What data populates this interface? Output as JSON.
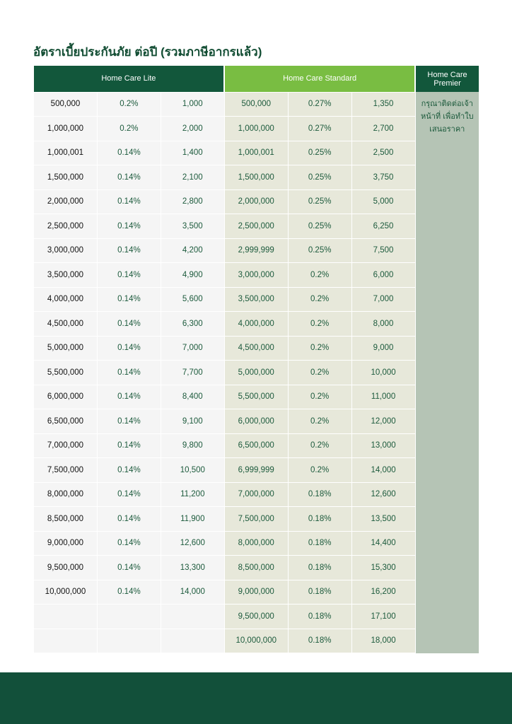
{
  "title": "อัตราเบี้ยประกันภัย ต่อปี (รวมภาษีอากรแล้ว)",
  "headers": {
    "lite": "Home Care Lite",
    "standard": "Home Care Standard",
    "premier": "Home Care Premier"
  },
  "premier_note": "กรุณาติดต่อเจ้าหน้าที่ เพื่อทำใบเสนอราคา",
  "lite_rows": [
    [
      "500,000",
      "0.2%",
      "1,000"
    ],
    [
      "1,000,000",
      "0.2%",
      "2,000"
    ],
    [
      "1,000,001",
      "0.14%",
      "1,400"
    ],
    [
      "1,500,000",
      "0.14%",
      "2,100"
    ],
    [
      "2,000,000",
      "0.14%",
      "2,800"
    ],
    [
      "2,500,000",
      "0.14%",
      "3,500"
    ],
    [
      "3,000,000",
      "0.14%",
      "4,200"
    ],
    [
      "3,500,000",
      "0.14%",
      "4,900"
    ],
    [
      "4,000,000",
      "0.14%",
      "5,600"
    ],
    [
      "4,500,000",
      "0.14%",
      "6,300"
    ],
    [
      "5,000,000",
      "0.14%",
      "7,000"
    ],
    [
      "5,500,000",
      "0.14%",
      "7,700"
    ],
    [
      "6,000,000",
      "0.14%",
      "8,400"
    ],
    [
      "6,500,000",
      "0.14%",
      "9,100"
    ],
    [
      "7,000,000",
      "0.14%",
      "9,800"
    ],
    [
      "7,500,000",
      "0.14%",
      "10,500"
    ],
    [
      "8,000,000",
      "0.14%",
      "11,200"
    ],
    [
      "8,500,000",
      "0.14%",
      "11,900"
    ],
    [
      "9,000,000",
      "0.14%",
      "12,600"
    ],
    [
      "9,500,000",
      "0.14%",
      "13,300"
    ],
    [
      "10,000,000",
      "0.14%",
      "14,000"
    ],
    [
      "",
      "",
      ""
    ],
    [
      "",
      "",
      ""
    ]
  ],
  "standard_rows": [
    [
      "500,000",
      "0.27%",
      "1,350"
    ],
    [
      "1,000,000",
      "0.27%",
      "2,700"
    ],
    [
      "1,000,001",
      "0.25%",
      "2,500"
    ],
    [
      "1,500,000",
      "0.25%",
      "3,750"
    ],
    [
      "2,000,000",
      "0.25%",
      "5,000"
    ],
    [
      "2,500,000",
      "0.25%",
      "6,250"
    ],
    [
      "2,999,999",
      "0.25%",
      "7,500"
    ],
    [
      "3,000,000",
      "0.2%",
      "6,000"
    ],
    [
      "3,500,000",
      "0.2%",
      "7,000"
    ],
    [
      "4,000,000",
      "0.2%",
      "8,000"
    ],
    [
      "4,500,000",
      "0.2%",
      "9,000"
    ],
    [
      "5,000,000",
      "0.2%",
      "10,000"
    ],
    [
      "5,500,000",
      "0.2%",
      "11,000"
    ],
    [
      "6,000,000",
      "0.2%",
      "12,000"
    ],
    [
      "6,500,000",
      "0.2%",
      "13,000"
    ],
    [
      "6,999,999",
      "0.2%",
      "14,000"
    ],
    [
      "7,000,000",
      "0.18%",
      "12,600"
    ],
    [
      "7,500,000",
      "0.18%",
      "13,500"
    ],
    [
      "8,000,000",
      "0.18%",
      "14,400"
    ],
    [
      "8,500,000",
      "0.18%",
      "15,300"
    ],
    [
      "9,000,000",
      "0.18%",
      "16,200"
    ],
    [
      "9,500,000",
      "0.18%",
      "17,100"
    ],
    [
      "10,000,000",
      "0.18%",
      "18,000"
    ]
  ]
}
